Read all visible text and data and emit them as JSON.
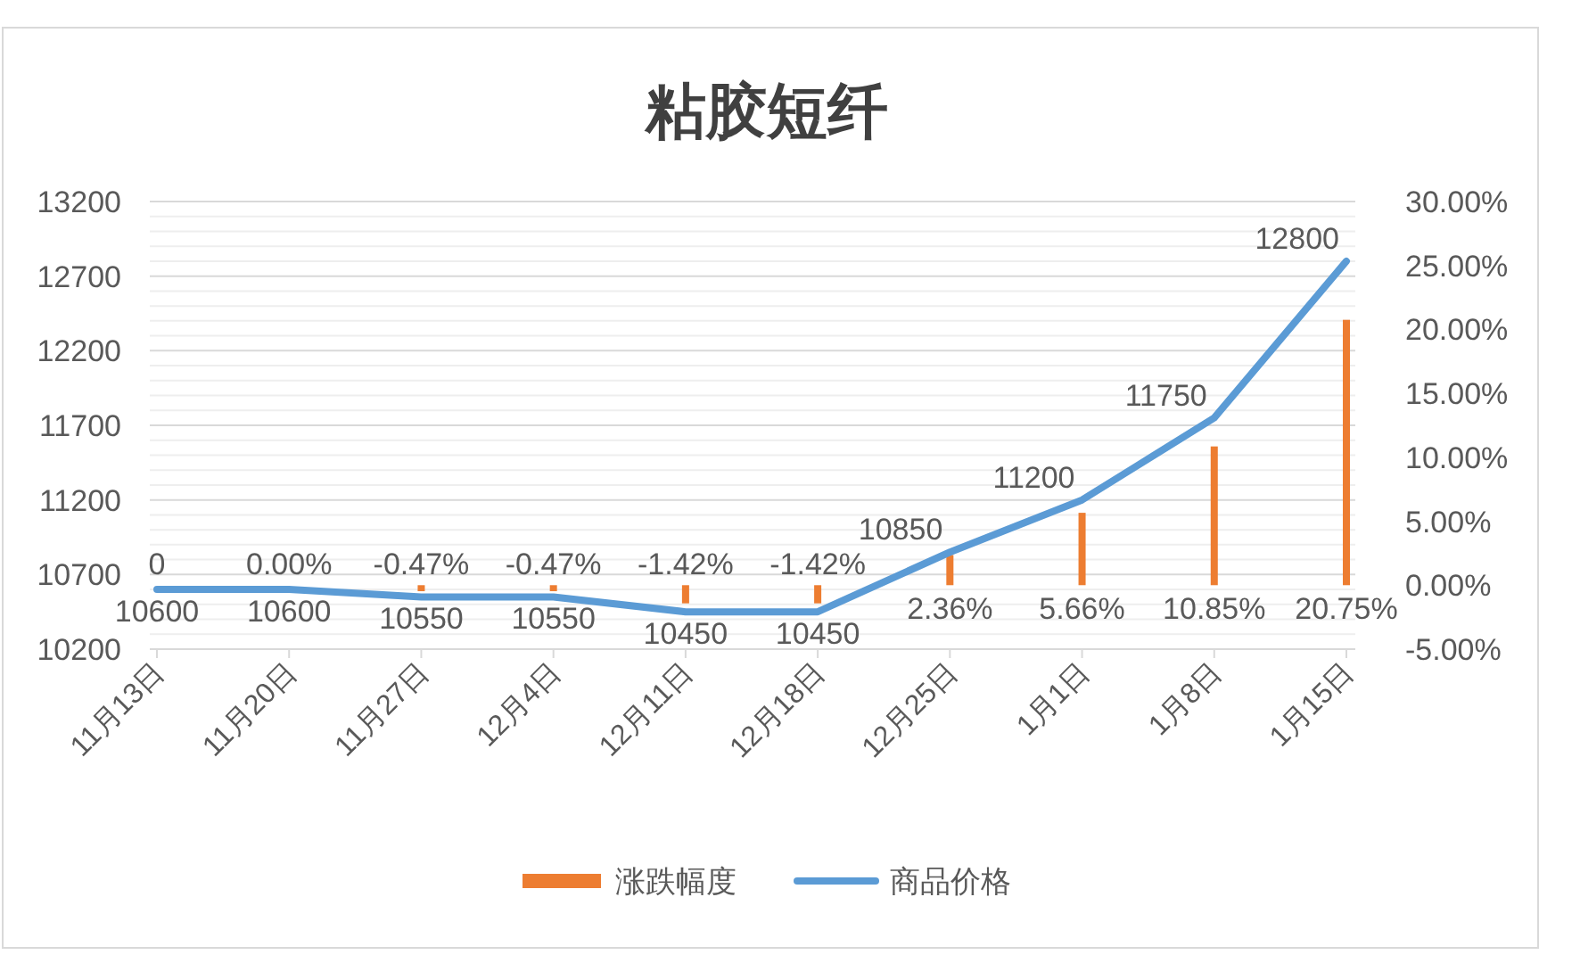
{
  "chart_data": {
    "type": "bar",
    "title": "粘胶短纤",
    "categories": [
      "11月13日",
      "11月20日",
      "11月27日",
      "12月4日",
      "12月11日",
      "12月18日",
      "12月25日",
      "1月1日",
      "1月8日",
      "1月15日"
    ],
    "series": [
      {
        "name": "涨跌幅度",
        "axis": "y2",
        "color": "#ed7d31",
        "values": [
          0,
          0,
          -0.47,
          -0.47,
          -1.42,
          -1.42,
          2.36,
          5.66,
          10.85,
          20.75
        ],
        "value_labels": [
          "0",
          "0.00%",
          "-0.47%",
          "-0.47%",
          "-1.42%",
          "-1.42%",
          "2.36%",
          "5.66%",
          "10.85%",
          "20.75%"
        ]
      },
      {
        "name": "商品价格",
        "type": "line",
        "color": "#5b9bd5",
        "values": [
          10600,
          10600,
          10550,
          10550,
          10450,
          10450,
          10850,
          11200,
          11750,
          12800
        ],
        "value_labels": [
          "10600",
          "10600",
          "10550",
          "10550",
          "10450",
          "10450",
          "10850",
          "11200",
          "11750",
          "12800"
        ]
      }
    ],
    "ylim": [
      10200,
      13200
    ],
    "yticks": [
      10200,
      {
        "value": 10300,
        "label": null
      },
      {
        "value": 10400,
        "label": null
      },
      {
        "value": 10500,
        "label": null
      },
      {
        "value": 10600,
        "label": null
      },
      10700,
      {
        "value": 10800,
        "label": null
      },
      {
        "value": 10900,
        "label": null
      },
      {
        "value": 11000,
        "label": null
      },
      {
        "value": 11100,
        "label": null
      },
      11200,
      {
        "value": 11300,
        "label": null
      },
      {
        "value": 11400,
        "label": null
      },
      {
        "value": 11500,
        "label": null
      },
      {
        "value": 11600,
        "label": null
      },
      11700,
      {
        "value": 11800,
        "label": null
      },
      {
        "value": 11900,
        "label": null
      },
      {
        "value": 12000,
        "label": null
      },
      {
        "value": 12100,
        "label": null
      },
      12200,
      {
        "value": 12300,
        "label": null
      },
      {
        "value": 12400,
        "label": null
      },
      {
        "value": 12500,
        "label": null
      },
      {
        "value": 12600,
        "label": null
      },
      12700,
      {
        "value": 12800,
        "label": null
      },
      {
        "value": 12900,
        "label": null
      },
      {
        "value": 13000,
        "label": null
      },
      {
        "value": 13100,
        "label": null
      },
      13200
    ],
    "y2lim": [
      -5,
      30
    ],
    "y2ticks": [
      {
        "value": -5,
        "label": "-5.00%"
      },
      {
        "value": 0,
        "label": "0.00%"
      },
      {
        "value": 5,
        "label": "5.00%"
      },
      {
        "value": 10,
        "label": "10.00%"
      },
      {
        "value": 15,
        "label": "15.00%"
      },
      {
        "value": 20,
        "label": "20.00%"
      },
      {
        "value": 25,
        "label": "25.00%"
      },
      {
        "value": 30,
        "label": "30.00%"
      }
    ],
    "grid": "y",
    "legend": "bottom"
  }
}
